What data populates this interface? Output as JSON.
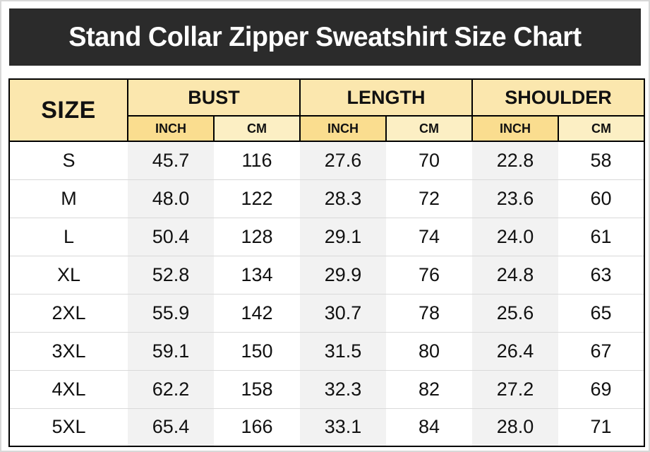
{
  "title": "Stand Collar Zipper Sweatshirt Size Chart",
  "table": {
    "size_header": "SIZE",
    "groups": [
      {
        "label": "BUST"
      },
      {
        "label": "LENGTH"
      },
      {
        "label": "SHOULDER"
      }
    ],
    "unit_headers": [
      "INCH",
      "CM",
      "INCH",
      "CM",
      "INCH",
      "CM"
    ],
    "rows": [
      {
        "size": "S",
        "values": [
          "45.7",
          "116",
          "27.6",
          "70",
          "22.8",
          "58"
        ]
      },
      {
        "size": "M",
        "values": [
          "48.0",
          "122",
          "28.3",
          "72",
          "23.6",
          "60"
        ]
      },
      {
        "size": "L",
        "values": [
          "50.4",
          "128",
          "29.1",
          "74",
          "24.0",
          "61"
        ]
      },
      {
        "size": "XL",
        "values": [
          "52.8",
          "134",
          "29.9",
          "76",
          "24.8",
          "63"
        ]
      },
      {
        "size": "2XL",
        "values": [
          "55.9",
          "142",
          "30.7",
          "78",
          "25.6",
          "65"
        ]
      },
      {
        "size": "3XL",
        "values": [
          "59.1",
          "150",
          "31.5",
          "80",
          "26.4",
          "67"
        ]
      },
      {
        "size": "4XL",
        "values": [
          "62.2",
          "158",
          "32.3",
          "82",
          "27.2",
          "69"
        ]
      },
      {
        "size": "5XL",
        "values": [
          "65.4",
          "166",
          "33.1",
          "84",
          "28.0",
          "71"
        ]
      }
    ]
  },
  "colors": {
    "title_bar_bg": "#2b2b2b",
    "title_text": "#ffffff",
    "header_cream": "#fbe7ae",
    "unit_inch_bg": "#fadd8f",
    "unit_cm_bg": "#fcefc4",
    "data_inch_bg": "#f2f2f2",
    "data_cm_bg": "#ffffff",
    "row_divider": "#d9d9d9",
    "border_black": "#000000"
  }
}
